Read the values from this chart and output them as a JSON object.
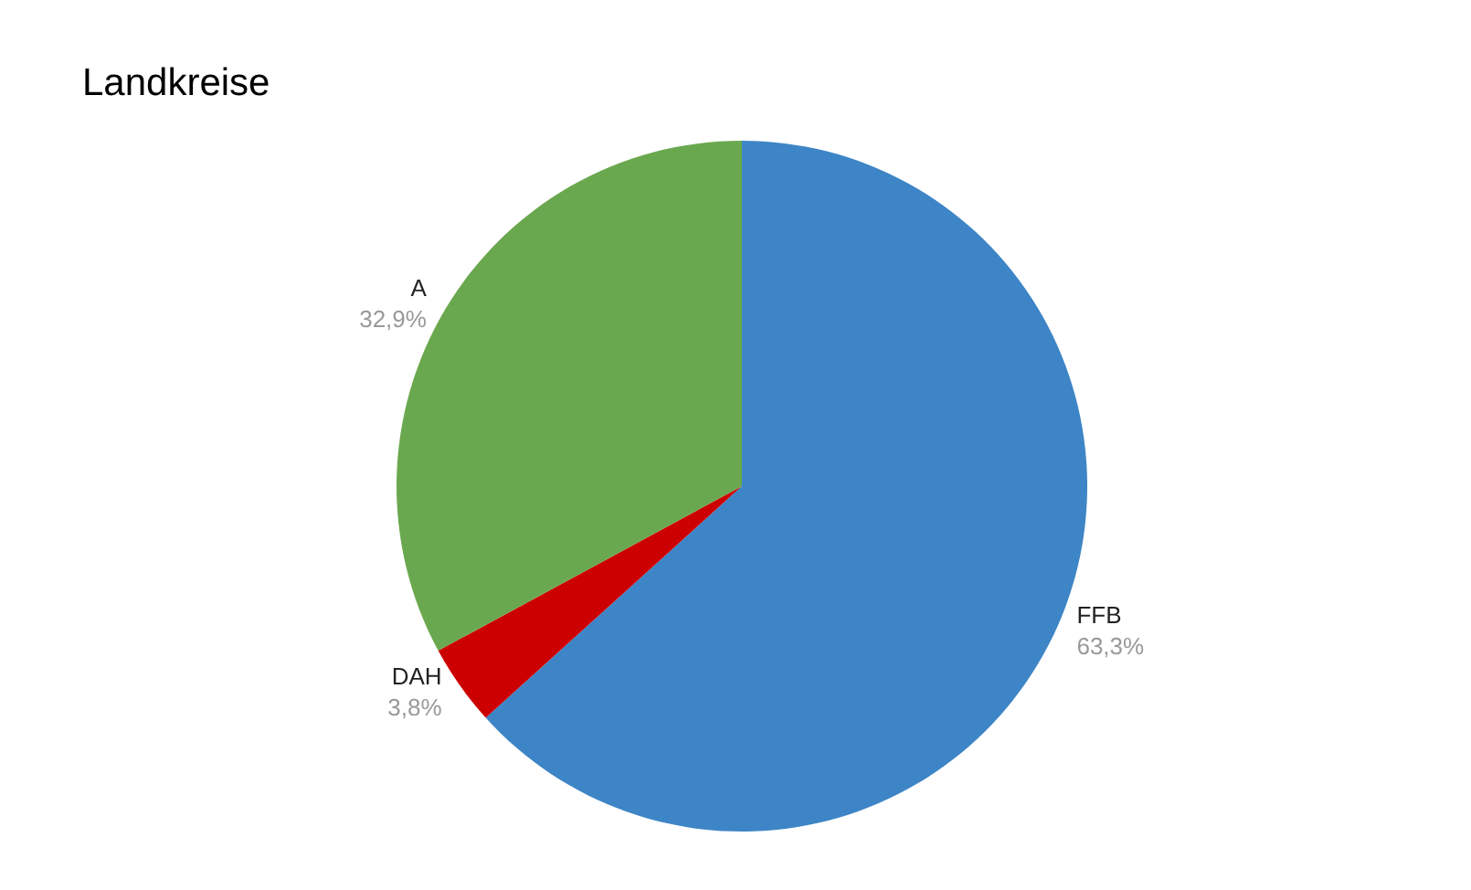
{
  "chart_data": {
    "type": "pie",
    "title": "Landkreise",
    "categories": [
      "FFB",
      "DAH",
      "A"
    ],
    "values": [
      63.3,
      3.8,
      32.9
    ],
    "colors": [
      "#3d85c6",
      "#cc0000",
      "#6aa84f"
    ],
    "value_labels": [
      "63,3%",
      "3,8%",
      "32,9%"
    ],
    "legend": false
  }
}
